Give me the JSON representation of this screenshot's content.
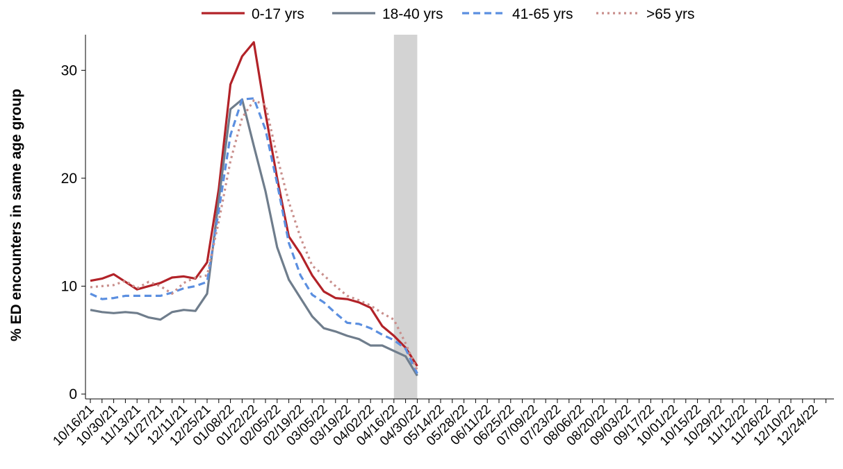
{
  "chart_data": {
    "type": "line",
    "y_label": "% ED encounters in same age group",
    "categories": [
      "10/16/21",
      null,
      "10/30/21",
      null,
      "11/13/21",
      null,
      "11/27/21",
      null,
      "12/11/21",
      null,
      "12/25/21",
      null,
      "01/08/22",
      null,
      "01/22/22",
      null,
      "02/05/22",
      null,
      "02/19/22",
      null,
      "03/05/22",
      null,
      "03/19/22",
      null,
      "04/02/22",
      null,
      "04/16/22",
      null,
      "04/30/22",
      null,
      "05/14/22",
      null,
      "05/28/22",
      null,
      "06/11/22",
      null,
      "06/25/22",
      null,
      "07/09/22",
      null,
      "07/23/22",
      null,
      "08/06/22",
      null,
      "08/20/22",
      null,
      "09/03/22",
      null,
      "09/17/22",
      null,
      "10/01/22",
      null,
      "10/15/22",
      null,
      "10/29/22",
      null,
      "11/12/22",
      null,
      "11/26/22",
      null,
      "12/10/22",
      null,
      "12/24/22",
      null
    ],
    "series": [
      {
        "name": "0-17 yrs",
        "color": "#b22228",
        "dash": "solid",
        "values": [
          10.5,
          10.7,
          11.1,
          10.4,
          9.7,
          10.0,
          10.3,
          10.8,
          10.9,
          10.7,
          12.2,
          19,
          28.7,
          31.3,
          32.6,
          26,
          20,
          14.6,
          13,
          11,
          9.5,
          8.9,
          8.8,
          8.5,
          8.0,
          6.3,
          5.4,
          4.3,
          2.6,
          null,
          null,
          null,
          null,
          null,
          null,
          null,
          null,
          null,
          null,
          null,
          null,
          null,
          null,
          null,
          null,
          null,
          null,
          null,
          null,
          null,
          null,
          null,
          null,
          null,
          null,
          null,
          null,
          null,
          null,
          null,
          null,
          null,
          null,
          null
        ]
      },
      {
        "name": "18-40 yrs",
        "color": "#6f7d8c",
        "dash": "solid",
        "values": [
          7.8,
          7.6,
          7.5,
          7.6,
          7.5,
          7.1,
          6.9,
          7.6,
          7.8,
          7.7,
          9.3,
          18,
          26.4,
          27.3,
          23,
          18.8,
          13.6,
          10.6,
          8.9,
          7.2,
          6.1,
          5.8,
          5.4,
          5.1,
          4.5,
          4.5,
          4.0,
          3.5,
          1.7,
          null,
          null,
          null,
          null,
          null,
          null,
          null,
          null,
          null,
          null,
          null,
          null,
          null,
          null,
          null,
          null,
          null,
          null,
          null,
          null,
          null,
          null,
          null,
          null,
          null,
          null,
          null,
          null,
          null,
          null,
          null,
          null,
          null,
          null,
          null
        ]
      },
      {
        "name": "41-65 yrs",
        "color": "#5b8fe0",
        "dash": "dashed",
        "values": [
          9.3,
          8.8,
          8.9,
          9.1,
          9.1,
          9.1,
          9.1,
          9.4,
          9.8,
          10.0,
          10.4,
          17,
          24,
          27.3,
          27.4,
          24.5,
          19.5,
          14.0,
          11.0,
          9.2,
          8.5,
          7.5,
          6.6,
          6.5,
          6.1,
          5.5,
          5.0,
          4.2,
          1.9,
          null,
          null,
          null,
          null,
          null,
          null,
          null,
          null,
          null,
          null,
          null,
          null,
          null,
          null,
          null,
          null,
          null,
          null,
          null,
          null,
          null,
          null,
          null,
          null,
          null,
          null,
          null,
          null,
          null,
          null,
          null,
          null,
          null,
          null,
          null
        ]
      },
      {
        "name": ">65 yrs",
        "color": "#c98f8c",
        "dash": "dotted",
        "values": [
          9.9,
          10.0,
          10.1,
          10.5,
          9.8,
          10.4,
          10.0,
          9.3,
          10.3,
          10.8,
          11.0,
          16,
          21.6,
          25.6,
          27.2,
          26.8,
          22,
          17.8,
          14.5,
          11.9,
          11.0,
          10.0,
          9.1,
          8.7,
          8.2,
          7.5,
          6.9,
          4.7,
          2.2,
          null,
          null,
          null,
          null,
          null,
          null,
          null,
          null,
          null,
          null,
          null,
          null,
          null,
          null,
          null,
          null,
          null,
          null,
          null,
          null,
          null,
          null,
          null,
          null,
          null,
          null,
          null,
          null,
          null,
          null,
          null,
          null,
          null,
          null,
          null
        ]
      }
    ],
    "ylim": [
      -0.45,
      33.3
    ],
    "yticks": [
      0,
      10,
      20,
      30
    ],
    "highlight": {
      "from": "04/16/22",
      "to": "04/30/22",
      "color": "#d3d3d3"
    },
    "legend": "top"
  }
}
